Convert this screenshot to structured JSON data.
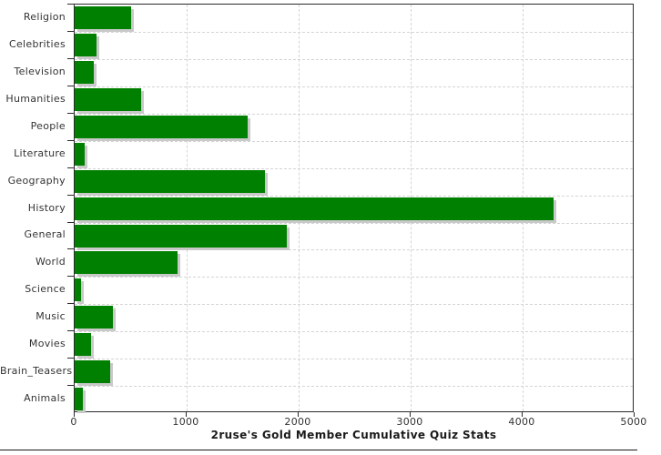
{
  "chart_data": {
    "type": "bar",
    "orientation": "horizontal",
    "title": "2ruse's Gold Member Cumulative Quiz Stats",
    "categories": [
      "Religion",
      "Celebrities",
      "Television",
      "Humanities",
      "People",
      "Literature",
      "Geography",
      "History",
      "General",
      "World",
      "Science",
      "Music",
      "Movies",
      "Brain_Teasers",
      "Animals"
    ],
    "values": [
      500,
      195,
      170,
      595,
      1545,
      85,
      1700,
      4280,
      1890,
      915,
      60,
      345,
      145,
      320,
      75
    ],
    "xlabel": "",
    "ylabel": "",
    "xlim": [
      0,
      5000
    ],
    "x_ticks": [
      0,
      1000,
      2000,
      3000,
      4000,
      5000
    ],
    "x_tick_labels": [
      "0",
      "1000",
      "2000",
      "3000",
      "4000",
      "5000"
    ],
    "grid": "dashed",
    "legend": "none",
    "colors": {
      "bar": "#008000",
      "bar_shadow": "#c9c9c9",
      "gridline": "#d4d4d4",
      "axis": "#2b2b2b",
      "label_text": "#333333",
      "title_text": "#1a1a1a"
    }
  }
}
